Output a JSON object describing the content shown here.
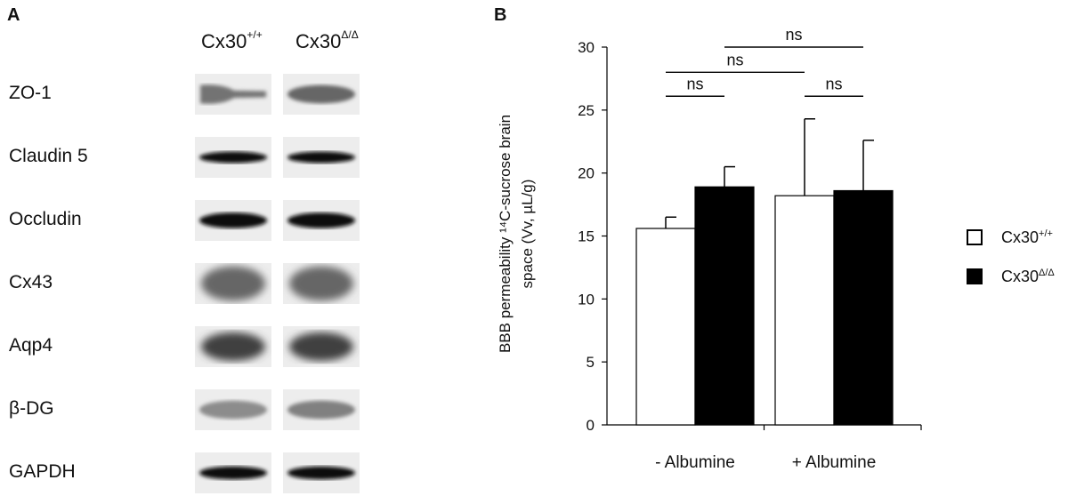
{
  "panel_a": {
    "letter": "A",
    "columns": [
      {
        "base": "Cx30",
        "sup": "+/+"
      },
      {
        "base": "Cx30",
        "sup": "Δ/Δ"
      }
    ],
    "rows": [
      {
        "label": "ZO-1",
        "intensity": [
          0.55,
          0.6
        ],
        "thickness": 0.45,
        "profile": "taper"
      },
      {
        "label": "Claudin 5",
        "intensity": [
          0.97,
          0.97
        ],
        "thickness": 0.28,
        "profile": "flat"
      },
      {
        "label": "Occludin",
        "intensity": [
          0.95,
          0.95
        ],
        "thickness": 0.38,
        "profile": "flat"
      },
      {
        "label": "Cx43",
        "intensity": [
          0.6,
          0.6
        ],
        "thickness": 0.85,
        "profile": "diffuse"
      },
      {
        "label": "Aqp4",
        "intensity": [
          0.75,
          0.75
        ],
        "thickness": 0.7,
        "profile": "diffuse"
      },
      {
        "label": "β-DG",
        "intensity": [
          0.45,
          0.5
        ],
        "thickness": 0.45,
        "profile": "flat"
      },
      {
        "label": "GAPDH",
        "intensity": [
          0.95,
          0.95
        ],
        "thickness": 0.32,
        "profile": "flat"
      }
    ]
  },
  "panel_b": {
    "letter": "B",
    "legend": [
      {
        "base": "Cx30",
        "sup": "+/+",
        "fill": "#ffffff"
      },
      {
        "base": "Cx30",
        "sup": "Δ/Δ",
        "fill": "#000000"
      }
    ]
  },
  "chart_data": {
    "type": "bar",
    "categories": [
      "- Albumine",
      "+ Albumine"
    ],
    "series": [
      {
        "name": "Cx30+/+",
        "values": [
          15.6,
          18.2
        ],
        "errors": [
          0.9,
          6.1
        ],
        "color": "#ffffff"
      },
      {
        "name": "CX30Δ/Δ",
        "values": [
          18.9,
          18.6
        ],
        "errors": [
          1.6,
          4.0
        ],
        "color": "#000000"
      }
    ],
    "ylabel_line1": "BBB permeability ¹⁴C-sucrose brain",
    "ylabel_line2": "space (Vv, µL/g)",
    "ylim": [
      0,
      30
    ],
    "yticks": [
      0,
      5,
      10,
      15,
      20,
      25,
      30
    ],
    "grid": false,
    "legend_position": "right",
    "significance": [
      {
        "label": "ns",
        "from": [
          0,
          0
        ],
        "to": [
          0,
          1
        ],
        "y": 26.1
      },
      {
        "label": "ns",
        "from": [
          1,
          0
        ],
        "to": [
          1,
          1
        ],
        "y": 26.1
      },
      {
        "label": "ns",
        "from": [
          0,
          0
        ],
        "to": [
          1,
          0
        ],
        "y": 28.0
      },
      {
        "label": "ns",
        "from": [
          0,
          1
        ],
        "to": [
          1,
          1
        ],
        "y": 30.0
      }
    ]
  }
}
